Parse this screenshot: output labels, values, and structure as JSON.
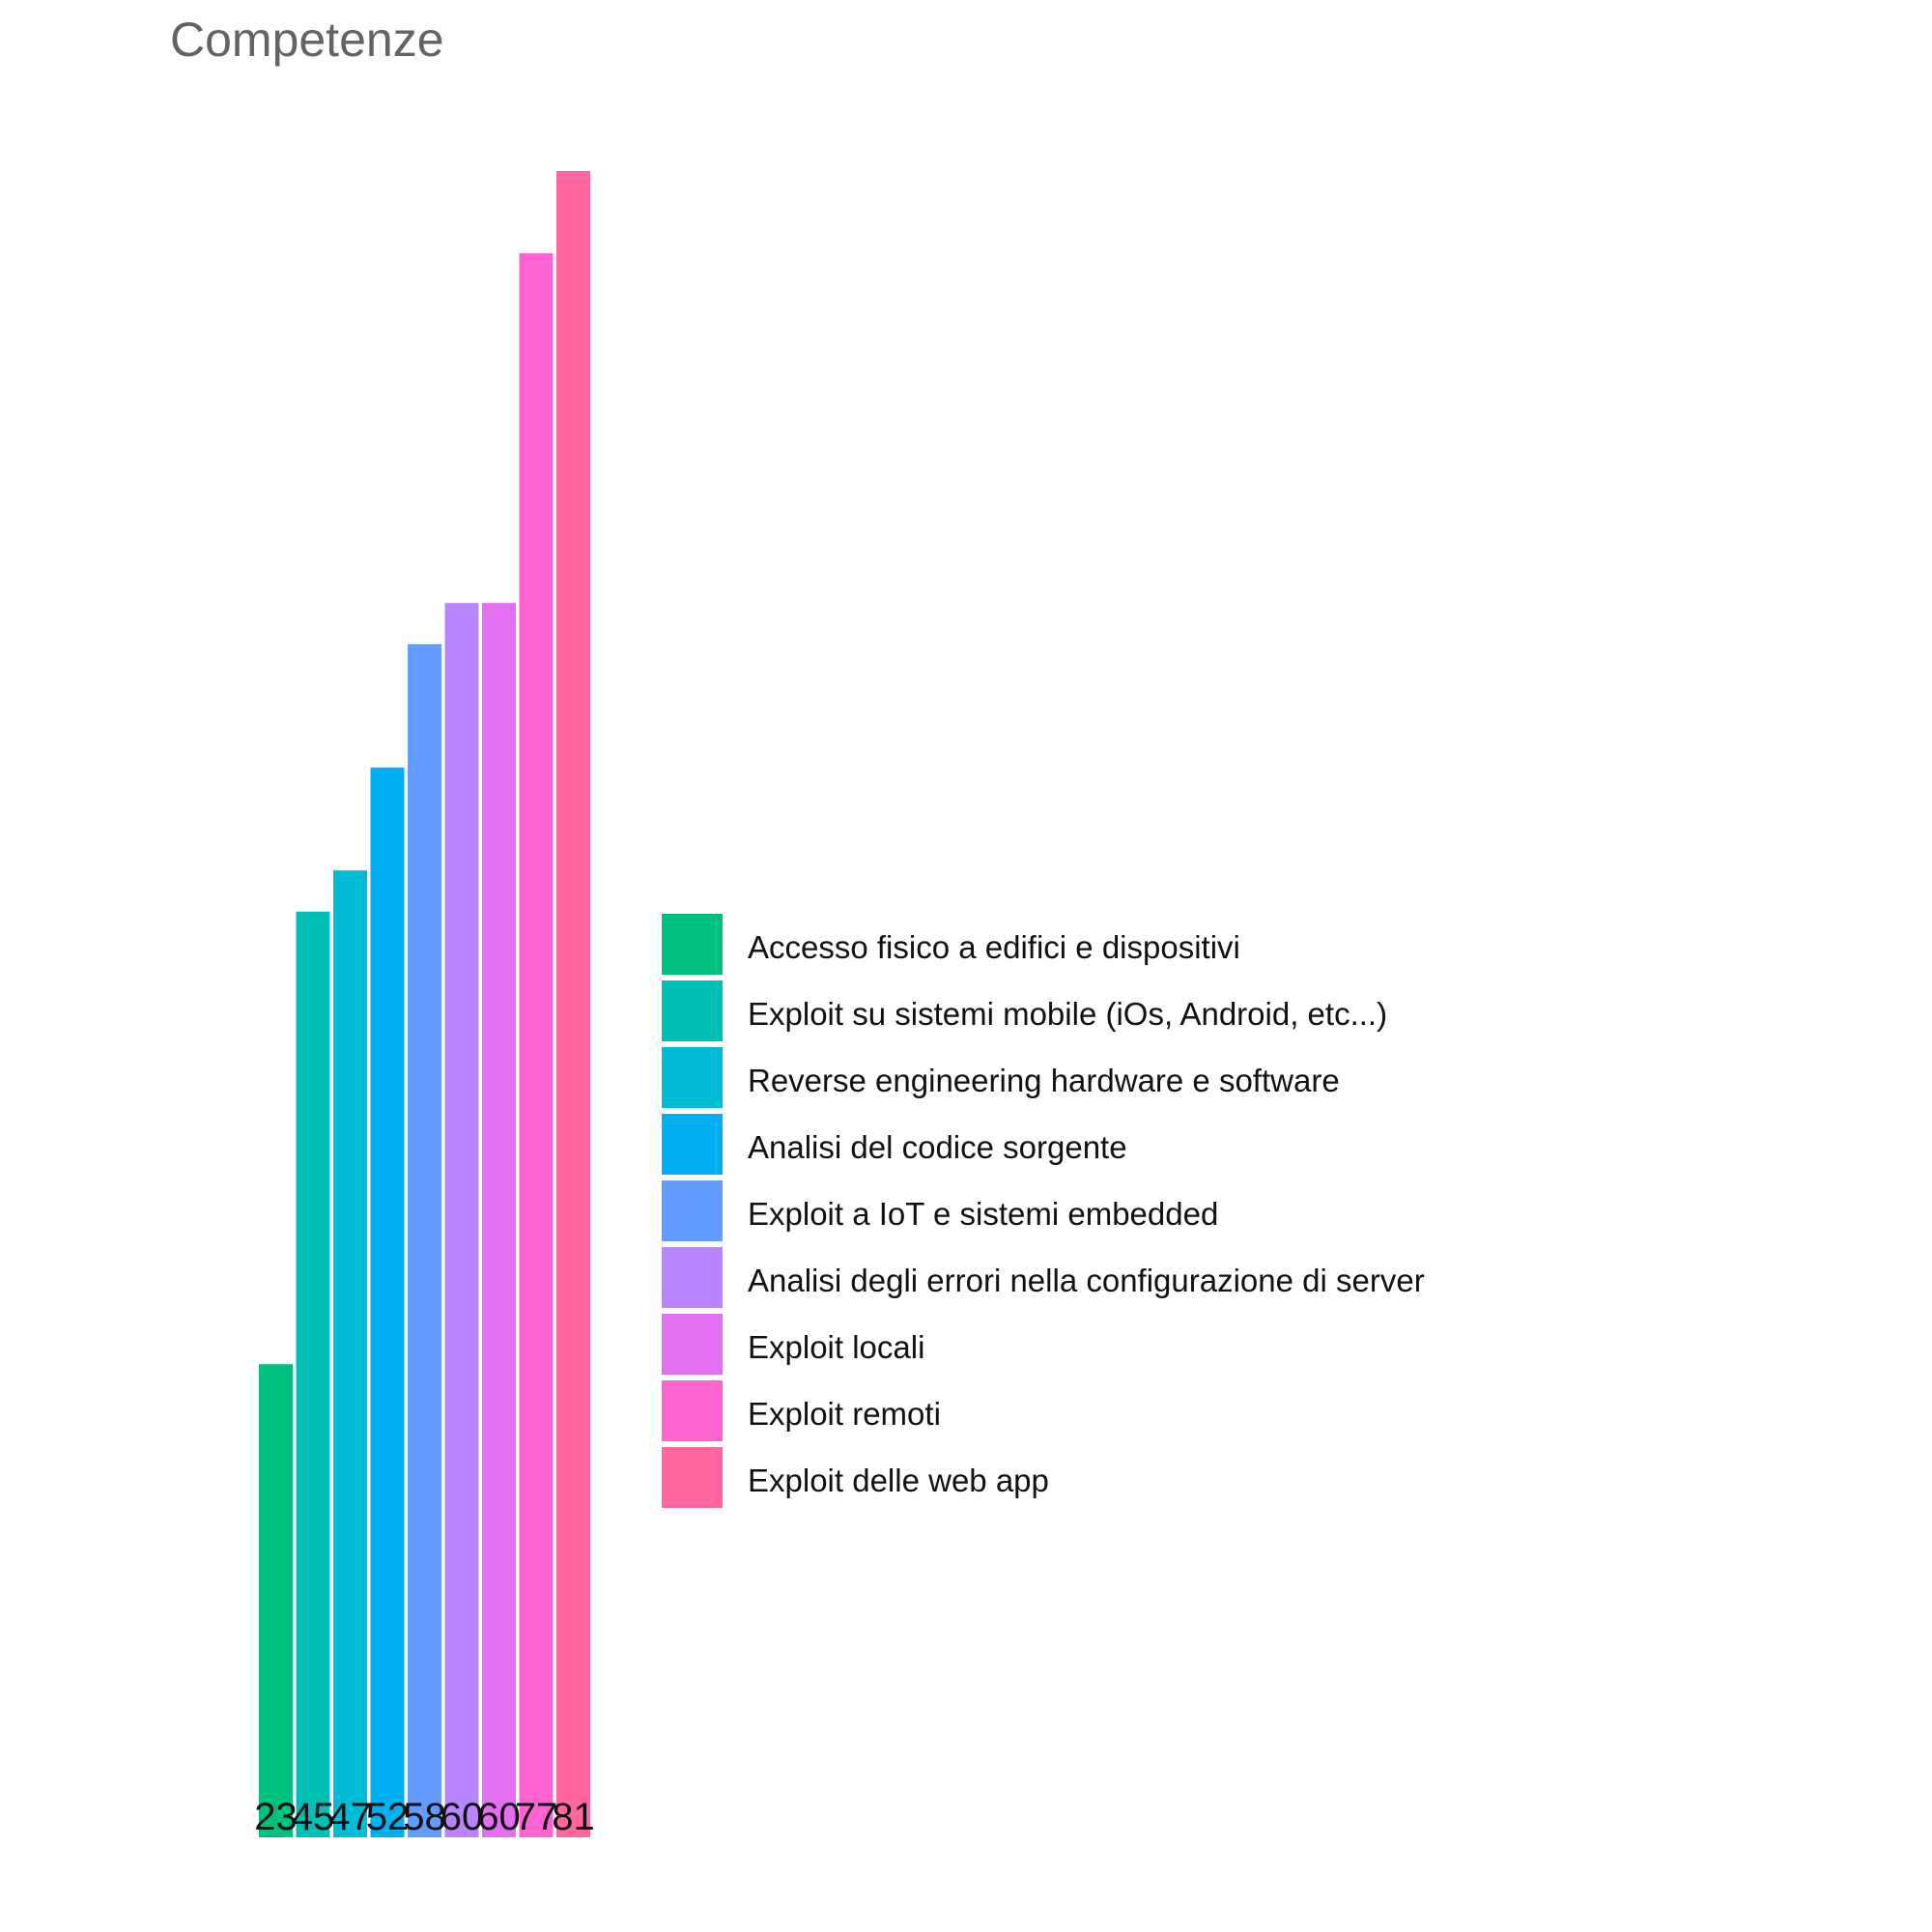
{
  "chart_data": {
    "type": "bar",
    "title": "Competenze",
    "xlabel": "",
    "ylabel": "",
    "ylim": [
      0,
      81
    ],
    "grid": false,
    "legend_position": "right",
    "categories": [
      "Accesso fisico a edifici e dispositivi",
      "Exploit su sistemi mobile (iOs, Android, etc...)",
      "Reverse engineering hardware e software",
      "Analisi del codice sorgente",
      "Exploit a IoT e sistemi embedded",
      "Analisi degli errori nella configurazione di server",
      "Exploit locali",
      "Exploit remoti",
      "Exploit delle web app"
    ],
    "values": [
      23,
      45,
      47,
      52,
      58,
      60,
      60,
      77,
      81
    ],
    "value_labels": [
      "23",
      "45",
      "47",
      "52",
      "58",
      "60",
      "60",
      "77",
      "81"
    ],
    "colors": [
      "#00C07F",
      "#00BFB4",
      "#00BCD6",
      "#00B0F2",
      "#639CFF",
      "#B985FF",
      "#E46EF2",
      "#FF63D2",
      "#FF679E"
    ]
  }
}
